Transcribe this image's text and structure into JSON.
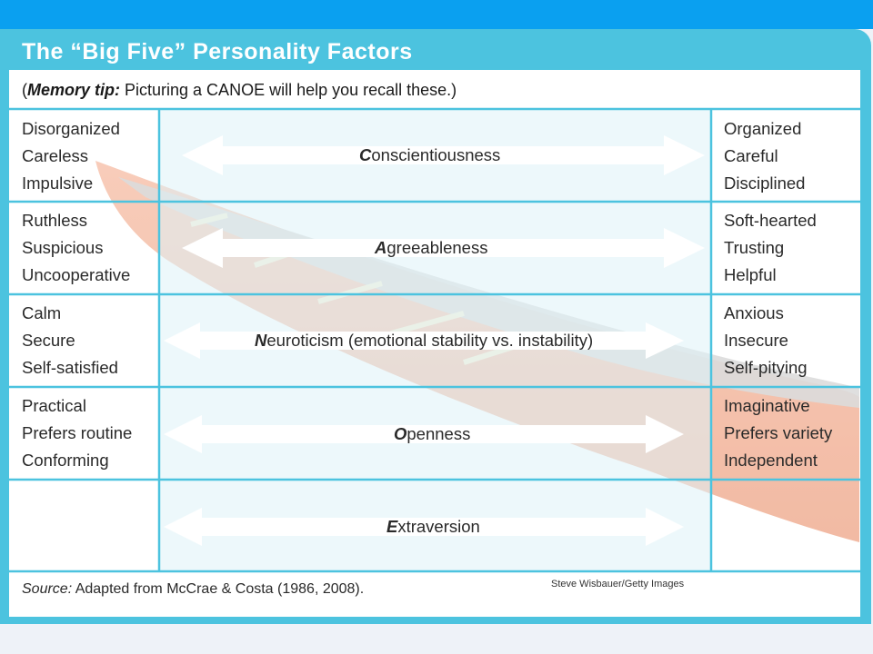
{
  "title": "The “Big Five” Personality Factors",
  "memory_tip": {
    "prefix": "(",
    "label": "Memory tip:",
    "text": " Picturing a CANOE will help you recall these.)"
  },
  "rows": [
    {
      "left": [
        "Disorganized",
        "Careless",
        "Impulsive"
      ],
      "factor_initial": "C",
      "factor_rest": "onscientiousness",
      "right": [
        "Organized",
        "Careful",
        "Disciplined"
      ]
    },
    {
      "left": [
        "Ruthless",
        "Suspicious",
        "Uncooperative"
      ],
      "factor_initial": "A",
      "factor_rest": "greeableness",
      "right": [
        "Soft-hearted",
        "Trusting",
        "Helpful"
      ]
    },
    {
      "left": [
        "Calm",
        "Secure",
        "Self-satisfied"
      ],
      "factor_initial": "N",
      "factor_rest": "euroticism (emotional stability vs. instability)",
      "right": [
        "Anxious",
        "Insecure",
        "Self-pitying"
      ]
    },
    {
      "left": [
        "Practical",
        "Prefers routine",
        "Conforming"
      ],
      "factor_initial": "O",
      "factor_rest": "penness",
      "right": [
        "Imaginative",
        "Prefers variety",
        "Independent"
      ]
    },
    {
      "left": [],
      "factor_initial": "E",
      "factor_rest": "xtraversion",
      "right": []
    }
  ],
  "source": {
    "label": "Source:",
    "text": " Adapted from McCrae & Costa (1986, 2008)."
  },
  "credit": "Steve Wisbauer/Getty Images",
  "colors": {
    "header_blue": "#0aa0f0",
    "panel_teal": "#4cc3df",
    "center_tint": "#dff2f8",
    "canoe_orange": "#e8835a"
  }
}
